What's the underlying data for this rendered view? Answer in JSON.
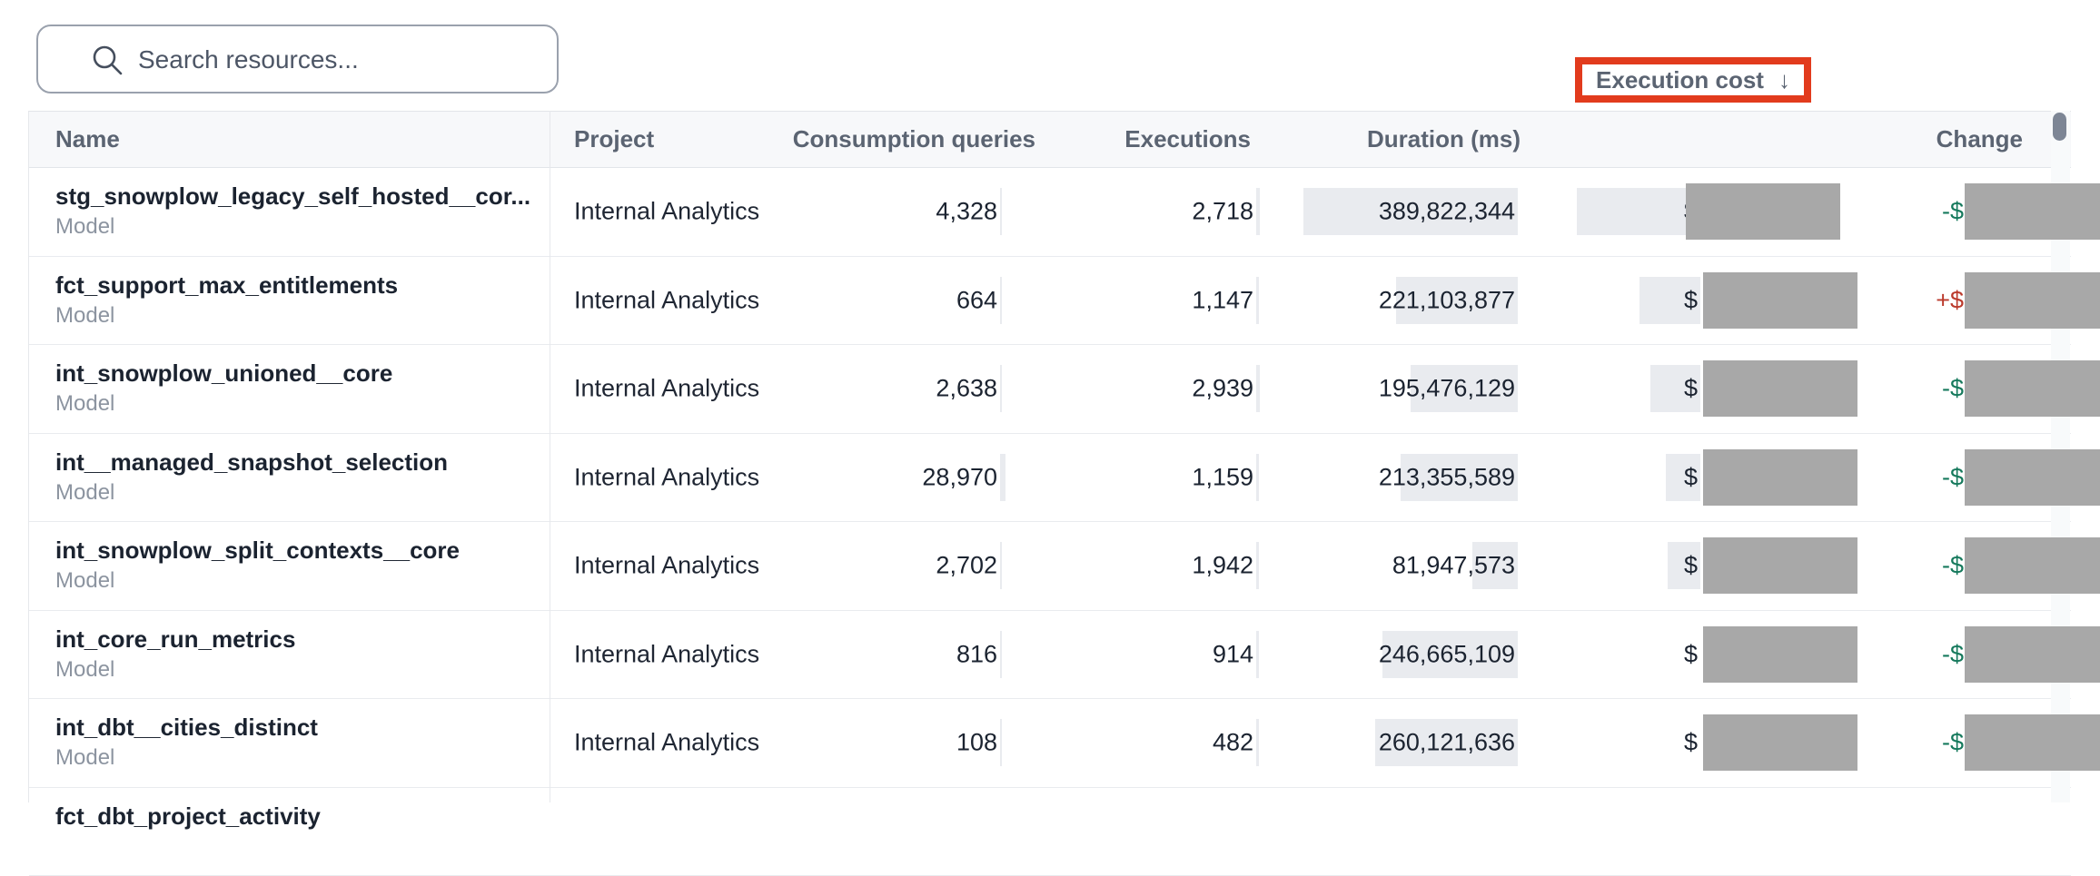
{
  "search": {
    "placeholder": "Search resources..."
  },
  "table": {
    "columns": [
      {
        "label": "Name"
      },
      {
        "label": "Project"
      },
      {
        "label": "Consumption queries"
      },
      {
        "label": "Executions"
      },
      {
        "label": "Duration (ms)"
      },
      {
        "label": "Execution cost",
        "sort_arrow": "↓",
        "highlighted": true
      },
      {
        "label": "Change"
      }
    ],
    "max_duration": 389822344,
    "rows": [
      {
        "name": "stg_snowplow_legacy_self_hosted__cor...",
        "type": "Model",
        "project": "Internal Analytics",
        "consumption_queries": "4,328",
        "consumption_value": 4328,
        "executions": "2,718",
        "executions_value": 2718,
        "duration_ms": "389,822,344",
        "duration_value": 389822344,
        "cost_prefix": "$",
        "cost_bar_w": 136,
        "cost_redacted": true,
        "change_prefix": "-$",
        "change_redacted": true
      },
      {
        "name": "fct_support_max_entitlements",
        "type": "Model",
        "project": "Internal Analytics",
        "consumption_queries": "664",
        "consumption_value": 664,
        "executions": "1,147",
        "executions_value": 1147,
        "duration_ms": "221,103,877",
        "duration_value": 221103877,
        "cost_prefix": "$",
        "cost_bar_w": 67,
        "cost_redacted": true,
        "change_prefix": "+$",
        "change_redacted": true
      },
      {
        "name": "int_snowplow_unioned__core",
        "type": "Model",
        "project": "Internal Analytics",
        "consumption_queries": "2,638",
        "consumption_value": 2638,
        "executions": "2,939",
        "executions_value": 2939,
        "duration_ms": "195,476,129",
        "duration_value": 195476129,
        "cost_prefix": "$",
        "cost_bar_w": 55,
        "cost_redacted": true,
        "change_prefix": "-$",
        "change_redacted": true
      },
      {
        "name": "int__managed_snapshot_selection",
        "type": "Model",
        "project": "Internal Analytics",
        "consumption_queries": "28,970",
        "consumption_value": 28970,
        "executions": "1,159",
        "executions_value": 1159,
        "duration_ms": "213,355,589",
        "duration_value": 213355589,
        "cost_prefix": "$",
        "cost_bar_w": 38,
        "cost_redacted": true,
        "change_prefix": "-$",
        "change_redacted": true
      },
      {
        "name": "int_snowplow_split_contexts__core",
        "type": "Model",
        "project": "Internal Analytics",
        "consumption_queries": "2,702",
        "consumption_value": 2702,
        "executions": "1,942",
        "executions_value": 1942,
        "duration_ms": "81,947,573",
        "duration_value": 81947573,
        "cost_prefix": "$",
        "cost_bar_w": 36,
        "cost_redacted": true,
        "change_prefix": "-$",
        "change_redacted": true
      },
      {
        "name": "int_core_run_metrics",
        "type": "Model",
        "project": "Internal Analytics",
        "consumption_queries": "816",
        "consumption_value": 816,
        "executions": "914",
        "executions_value": 914,
        "duration_ms": "246,665,109",
        "duration_value": 246665109,
        "cost_prefix": "$",
        "cost_bar_w": 0,
        "cost_redacted": true,
        "change_prefix": "-$",
        "change_redacted": true
      },
      {
        "name": "int_dbt__cities_distinct",
        "type": "Model",
        "project": "Internal Analytics",
        "consumption_queries": "108",
        "consumption_value": 108,
        "executions": "482",
        "executions_value": 482,
        "duration_ms": "260,121,636",
        "duration_value": 260121636,
        "cost_prefix": "$",
        "cost_bar_w": 0,
        "cost_redacted": true,
        "change_prefix": "-$",
        "change_redacted": true
      },
      {
        "name": "fct_dbt_project_activity",
        "type": "",
        "project": "",
        "consumption_queries": "",
        "consumption_value": 0,
        "executions": "",
        "executions_value": 0,
        "duration_ms": "",
        "duration_value": 0,
        "cost_prefix": "",
        "cost_bar_w": 0,
        "cost_redacted": false,
        "change_prefix": "",
        "change_redacted": false
      }
    ]
  },
  "colors": {
    "annotation_red": "#e23b1d",
    "redaction_grey": "#a8a8a8",
    "bar_grey": "#e9ebef",
    "header_bg": "#f7f8fa",
    "change_up_red": "#bb3a2c",
    "change_down_green": "#15795c",
    "scroll_thumb": "#7d8695"
  }
}
